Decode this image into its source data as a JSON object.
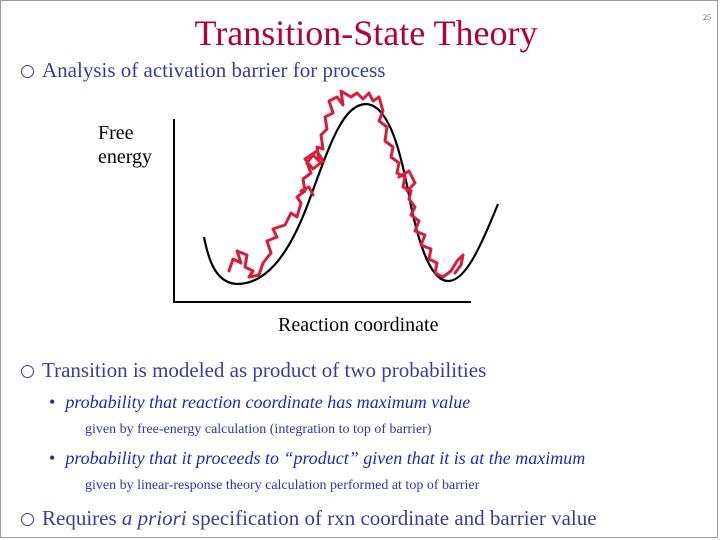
{
  "slide": {
    "title": "Transition-State Theory",
    "number": "25",
    "bullets": [
      "Analysis of activation barrier for process",
      "Transition is modeled as product of two probabilities"
    ],
    "sub_bullets": [
      {
        "text": "probability that reaction coordinate has maximum value",
        "note": "given by free-energy calculation (integration to top of barrier)"
      },
      {
        "text": "probability that it proceeds to “product” given that it is at the maximum",
        "note": "given by linear-response theory calculation performed at top of barrier"
      }
    ],
    "last_bullet": {
      "before": "Requires ",
      "italic": "a priori",
      "after": " specification of rxn coordinate and barrier value"
    }
  },
  "diagram": {
    "y_label_line1": "Free",
    "y_label_line2": "energy",
    "x_label": "Reaction coordinate",
    "colors": {
      "curve": "#000000",
      "trajectory": "#d81c3c"
    }
  }
}
